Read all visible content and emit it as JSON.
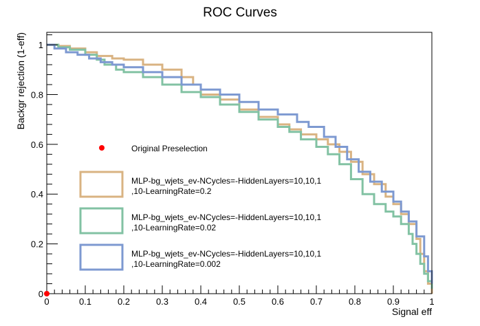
{
  "chart_data": {
    "type": "line",
    "title": "ROC Curves",
    "xlabel": "Signal eff",
    "ylabel": "Backgr rejection (1-eff)",
    "xlim": [
      0,
      1
    ],
    "ylim": [
      0,
      1.05
    ],
    "x_ticks": [
      "0",
      "0.1",
      "0.2",
      "0.3",
      "0.4",
      "0.5",
      "0.6",
      "0.7",
      "0.8",
      "0.9",
      "1"
    ],
    "y_ticks": [
      "0",
      "0.2",
      "0.4",
      "0.6",
      "0.8",
      "1"
    ],
    "grid": false,
    "legend_position": "left-inside",
    "step_lines": true,
    "markers": [
      {
        "name": "Original Preselection",
        "x": 0.0,
        "y": 0.0,
        "color": "#ff0000"
      }
    ],
    "series": [
      {
        "name": "MLP-bg_wjets_ev-NCycles=-HiddenLayers=10,10,1,10-LearningRate=0.2",
        "label_lines": [
          "MLP-bg_wjets_ev-NCycles=-HiddenLayers=10,10,1",
          ",10-LearningRate=0.2"
        ],
        "color": "#d9b382",
        "x": [
          0,
          0.03,
          0.06,
          0.1,
          0.13,
          0.17,
          0.2,
          0.25,
          0.3,
          0.35,
          0.38,
          0.4,
          0.45,
          0.5,
          0.55,
          0.6,
          0.63,
          0.66,
          0.7,
          0.73,
          0.76,
          0.79,
          0.82,
          0.85,
          0.88,
          0.9,
          0.92,
          0.94,
          0.96,
          0.97,
          0.98,
          0.99,
          1.0
        ],
        "y": [
          1.0,
          0.995,
          0.985,
          0.97,
          0.955,
          0.945,
          0.94,
          0.92,
          0.9,
          0.87,
          0.84,
          0.8,
          0.78,
          0.74,
          0.71,
          0.68,
          0.66,
          0.64,
          0.62,
          0.6,
          0.57,
          0.53,
          0.48,
          0.44,
          0.39,
          0.36,
          0.32,
          0.28,
          0.22,
          0.16,
          0.09,
          0.04,
          0.0
        ]
      },
      {
        "name": "MLP-bg_wjets_ev-NCycles=-HiddenLayers=10,10,1,10-LearningRate=0.02",
        "label_lines": [
          "MLP-bg_wjets_ev-NCycles=-HiddenLayers=10,10,1",
          ",10-LearningRate=0.02"
        ],
        "color": "#82c2a3",
        "x": [
          0,
          0.03,
          0.06,
          0.1,
          0.13,
          0.15,
          0.18,
          0.2,
          0.25,
          0.3,
          0.35,
          0.4,
          0.45,
          0.5,
          0.55,
          0.6,
          0.63,
          0.66,
          0.7,
          0.73,
          0.76,
          0.79,
          0.82,
          0.85,
          0.88,
          0.9,
          0.92,
          0.94,
          0.95,
          0.96,
          0.97,
          0.98,
          0.99,
          1.0
        ],
        "y": [
          1.0,
          0.99,
          0.98,
          0.96,
          0.94,
          0.92,
          0.9,
          0.89,
          0.87,
          0.84,
          0.81,
          0.79,
          0.76,
          0.73,
          0.7,
          0.67,
          0.65,
          0.62,
          0.59,
          0.56,
          0.52,
          0.46,
          0.4,
          0.36,
          0.33,
          0.31,
          0.28,
          0.24,
          0.2,
          0.16,
          0.12,
          0.08,
          0.05,
          0.02
        ]
      },
      {
        "name": "MLP-bg_wjets_ev-NCycles=-HiddenLayers=10,10,1,10-LearningRate=0.002",
        "label_lines": [
          "MLP-bg_wjets_ev-NCycles=-HiddenLayers=10,10,1",
          ",10-LearningRate=0.002"
        ],
        "color": "#7d99d1",
        "x": [
          0,
          0.02,
          0.05,
          0.08,
          0.11,
          0.14,
          0.17,
          0.2,
          0.25,
          0.3,
          0.35,
          0.4,
          0.45,
          0.5,
          0.55,
          0.6,
          0.65,
          0.68,
          0.72,
          0.75,
          0.78,
          0.81,
          0.84,
          0.87,
          0.9,
          0.92,
          0.94,
          0.96,
          0.98,
          0.99,
          1.0
        ],
        "y": [
          1.0,
          0.985,
          0.97,
          0.96,
          0.945,
          0.93,
          0.92,
          0.91,
          0.89,
          0.87,
          0.84,
          0.82,
          0.8,
          0.77,
          0.74,
          0.72,
          0.69,
          0.67,
          0.63,
          0.59,
          0.54,
          0.49,
          0.45,
          0.41,
          0.37,
          0.33,
          0.29,
          0.23,
          0.15,
          0.09,
          0.04
        ]
      }
    ]
  }
}
